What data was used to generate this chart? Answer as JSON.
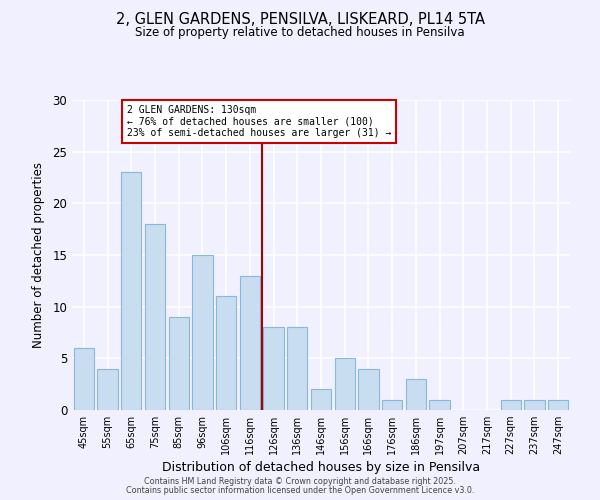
{
  "title": "2, GLEN GARDENS, PENSILVA, LISKEARD, PL14 5TA",
  "subtitle": "Size of property relative to detached houses in Pensilva",
  "xlabel": "Distribution of detached houses by size in Pensilva",
  "ylabel": "Number of detached properties",
  "categories": [
    "45sqm",
    "55sqm",
    "65sqm",
    "75sqm",
    "85sqm",
    "96sqm",
    "106sqm",
    "116sqm",
    "126sqm",
    "136sqm",
    "146sqm",
    "156sqm",
    "166sqm",
    "176sqm",
    "186sqm",
    "197sqm",
    "207sqm",
    "217sqm",
    "227sqm",
    "237sqm",
    "247sqm"
  ],
  "values": [
    6,
    4,
    23,
    18,
    9,
    15,
    11,
    13,
    8,
    8,
    2,
    5,
    4,
    1,
    3,
    1,
    0,
    0,
    1,
    1,
    1
  ],
  "bar_color": "#c9ddf0",
  "bar_edge_color": "#89b8d8",
  "background_color": "#f0f0ff",
  "grid_color": "#ffffff",
  "vline_x": 7.5,
  "vline_color": "#aa0000",
  "annotation_title": "2 GLEN GARDENS: 130sqm",
  "annotation_line1": "← 76% of detached houses are smaller (100)",
  "annotation_line2": "23% of semi-detached houses are larger (31) →",
  "annotation_box_color": "#ffffff",
  "annotation_box_edge": "#cc0000",
  "ylim": [
    0,
    30
  ],
  "yticks": [
    0,
    5,
    10,
    15,
    20,
    25,
    30
  ],
  "footer1": "Contains HM Land Registry data © Crown copyright and database right 2025.",
  "footer2": "Contains public sector information licensed under the Open Government Licence v3.0."
}
